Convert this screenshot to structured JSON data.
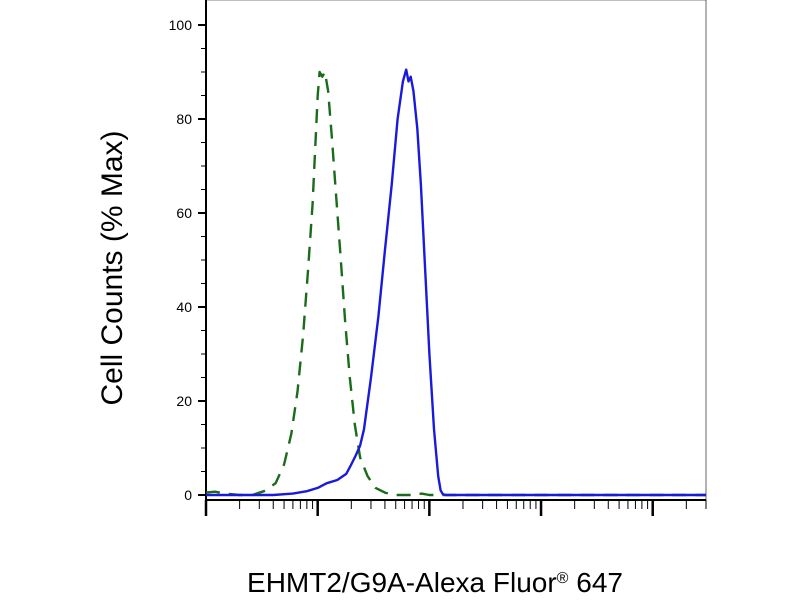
{
  "chart_data": {
    "type": "line",
    "title": "",
    "xlabel": "EHMT2/G9A-Alexa Fluor",
    "xlabel_superscript": "®",
    "xlabel_suffix": " 647",
    "ylabel": "Cell Counts (% Max)",
    "x_scale": "log",
    "xlim": [
      1,
      30000
    ],
    "ylim": [
      0,
      100
    ],
    "yticks": [
      0,
      20,
      40,
      60,
      80,
      100
    ],
    "grid": false,
    "series": [
      {
        "style": "dashed",
        "color": "#1a6b1a",
        "x": [
          1,
          1.2,
          1.5,
          2,
          2.6,
          3.3,
          4.2,
          5,
          5.8,
          6.6,
          7.4,
          8.2,
          9,
          9.6,
          10,
          10.4,
          11,
          11.6,
          12.4,
          13.4,
          14.6,
          16,
          17.6,
          19.4,
          21.5,
          24,
          28,
          33,
          40,
          48,
          58,
          70,
          85,
          100,
          120,
          150,
          200,
          300,
          1000,
          30000
        ],
        "y": [
          0.5,
          0.7,
          0.3,
          0.0,
          0.0,
          0.8,
          2.5,
          6.5,
          13.0,
          22.0,
          34.0,
          48.0,
          62.0,
          76.0,
          85.0,
          90.0,
          89.0,
          90.0,
          86.0,
          76.0,
          64.0,
          51.0,
          37.0,
          25.0,
          15.0,
          8.0,
          4.0,
          1.5,
          0.5,
          0.0,
          0.0,
          0.0,
          0.3,
          0.0,
          0.0,
          0.0,
          0.0,
          0.0,
          0.0,
          0.0
        ]
      },
      {
        "style": "solid",
        "color": "#1a1adb",
        "x": [
          1,
          2,
          4,
          6,
          8,
          10,
          12,
          15,
          18,
          20,
          22,
          24,
          26,
          30,
          35,
          40,
          46,
          52,
          58,
          62,
          65,
          68,
          72,
          78,
          84,
          90,
          100,
          110,
          120,
          126,
          132,
          140,
          160,
          200,
          500,
          1000,
          3000,
          10000,
          30000
        ],
        "y": [
          0.0,
          0.0,
          0.0,
          0.3,
          0.8,
          1.5,
          2.5,
          3.2,
          4.5,
          6.5,
          8.5,
          10.5,
          14.0,
          25.0,
          38.0,
          52.0,
          66.0,
          80.0,
          88.0,
          90.5,
          88.0,
          89.0,
          86.0,
          78.0,
          66.0,
          52.0,
          30.0,
          14.0,
          4.0,
          1.0,
          0.2,
          0.0,
          0.0,
          0.0,
          0.0,
          0.0,
          0.0,
          0.0,
          0.0
        ]
      }
    ]
  }
}
